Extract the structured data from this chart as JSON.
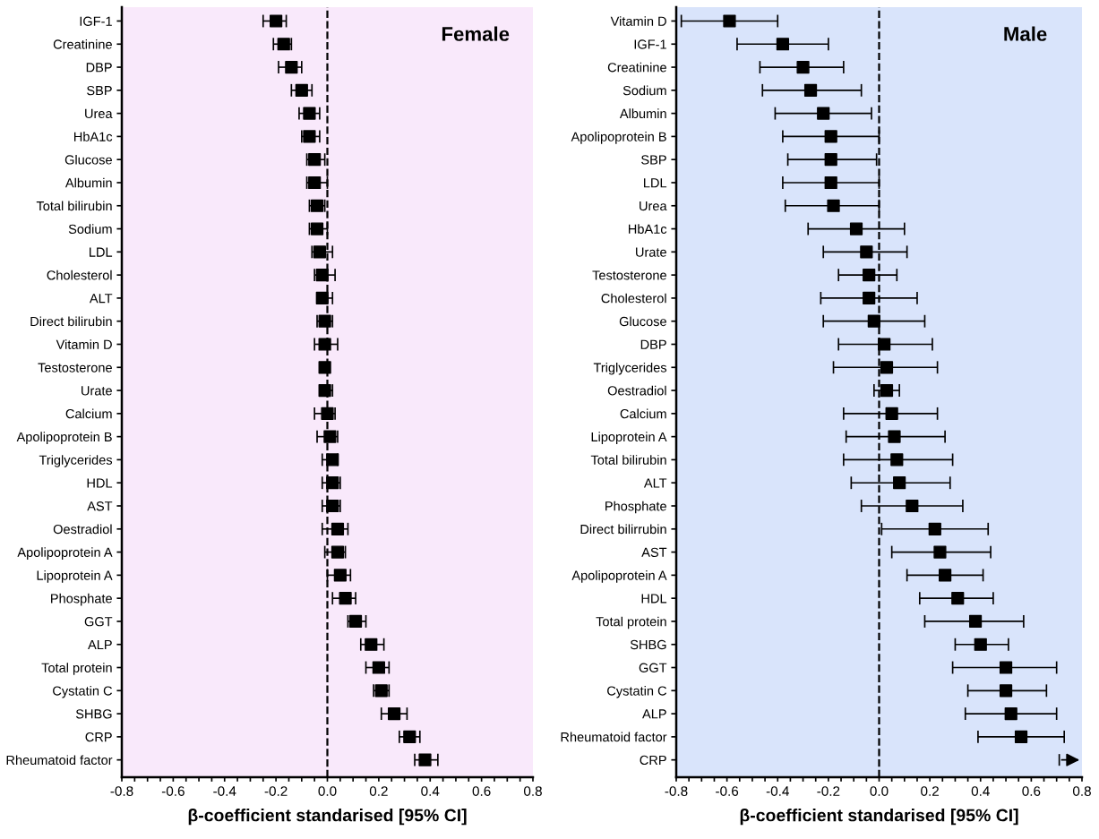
{
  "chart_data": [
    {
      "type": "scatter",
      "orientation": "horizontal",
      "annotations": [
        "Female"
      ],
      "xlabel": "β-coefficient standarised [95% CI]",
      "marker": "square",
      "grid": false,
      "categories": [
        "IGF-1",
        "Creatinine",
        "DBP",
        "SBP",
        "Urea",
        "HbA1c",
        "Glucose",
        "Albumin",
        "Total bilirubin",
        "Sodium",
        "LDL",
        "Cholesterol",
        "ALT",
        "Direct bilirubin",
        "Vitamin D",
        "Testosterone",
        "Urate",
        "Calcium",
        "Apolipoprotein B",
        "Triglycerides",
        "HDL",
        "AST",
        "Oestradiol",
        "Apolipoprotein A",
        "Lipoprotein A",
        "Phosphate",
        "GGT",
        "ALP",
        "Total protein",
        "Cystatin C",
        "SHBG",
        "CRP",
        "Rheumatoid factor"
      ],
      "series": [
        {
          "color": "#000000",
          "values": [
            -0.2,
            -0.17,
            -0.14,
            -0.1,
            -0.07,
            -0.07,
            -0.05,
            -0.05,
            -0.04,
            -0.04,
            -0.03,
            -0.02,
            -0.02,
            -0.01,
            -0.01,
            -0.01,
            -0.01,
            0.0,
            0.01,
            0.02,
            0.02,
            0.02,
            0.04,
            0.04,
            0.05,
            0.07,
            0.11,
            0.17,
            0.2,
            0.21,
            0.26,
            0.32,
            0.38
          ],
          "errors": [
            [
              -0.25,
              -0.16
            ],
            [
              -0.21,
              -0.14
            ],
            [
              -0.19,
              -0.1
            ],
            [
              -0.14,
              -0.06
            ],
            [
              -0.11,
              -0.03
            ],
            [
              -0.1,
              -0.03
            ],
            [
              -0.08,
              -0.01
            ],
            [
              -0.08,
              0.0
            ],
            [
              -0.07,
              -0.01
            ],
            [
              -0.07,
              0.0
            ],
            [
              -0.06,
              0.02
            ],
            [
              -0.05,
              0.03
            ],
            [
              -0.04,
              0.02
            ],
            [
              -0.04,
              0.02
            ],
            [
              -0.05,
              0.04
            ],
            null,
            [
              -0.03,
              0.02
            ],
            [
              -0.05,
              0.03
            ],
            [
              -0.04,
              0.04
            ],
            [
              -0.02,
              0.04
            ],
            [
              -0.02,
              0.05
            ],
            [
              -0.02,
              0.05
            ],
            [
              -0.02,
              0.08
            ],
            [
              -0.01,
              0.07
            ],
            [
              0.0,
              0.09
            ],
            [
              0.02,
              0.11
            ],
            [
              0.08,
              0.15
            ],
            [
              0.13,
              0.22
            ],
            [
              0.15,
              0.24
            ],
            [
              0.18,
              0.24
            ],
            [
              0.21,
              0.31
            ],
            [
              0.28,
              0.36
            ],
            [
              0.34,
              0.43
            ]
          ]
        }
      ],
      "xlim": [
        -0.8,
        0.8
      ],
      "xticks": [
        -0.8,
        {
          "value": -0.75,
          "label": null
        },
        {
          "value": -0.7,
          "label": null
        },
        {
          "value": -0.65,
          "label": null
        },
        -0.6,
        {
          "value": -0.55,
          "label": null
        },
        {
          "value": -0.5,
          "label": null
        },
        {
          "value": -0.45,
          "label": null
        },
        -0.4,
        {
          "value": -0.35,
          "label": null
        },
        {
          "value": -0.3,
          "label": null
        },
        {
          "value": -0.25,
          "label": null
        },
        -0.2,
        {
          "value": -0.15,
          "label": null
        },
        {
          "value": -0.1,
          "label": null
        },
        {
          "value": -0.05,
          "label": null
        },
        {
          "value": 0,
          "label": "0.0"
        },
        {
          "value": 0.05,
          "label": null
        },
        {
          "value": 0.1,
          "label": null
        },
        {
          "value": 0.15,
          "label": null
        },
        0.2,
        {
          "value": 0.25,
          "label": null
        },
        {
          "value": 0.3,
          "label": null
        },
        {
          "value": 0.35,
          "label": null
        },
        0.4,
        {
          "value": 0.45,
          "label": null
        },
        {
          "value": 0.5,
          "label": null
        },
        {
          "value": 0.55,
          "label": null
        },
        0.6,
        {
          "value": 0.65,
          "label": null
        },
        {
          "value": 0.7,
          "label": null
        },
        {
          "value": 0.75,
          "label": null
        },
        0.8
      ],
      "ref_lines": [
        {
          "axis": "x",
          "value": 0,
          "color": "#000000",
          "line_style": "dashed"
        }
      ],
      "bands": [
        {
          "axis": "x",
          "from": -0.8,
          "to": 0.8,
          "color": "#f9e9fb"
        }
      ]
    },
    {
      "type": "scatter",
      "orientation": "horizontal",
      "annotations": [
        "Male"
      ],
      "xlabel": "β-coefficient standarised [95% CI]",
      "marker": "square",
      "grid": false,
      "categories": [
        "Vitamin D",
        "IGF-1",
        "Creatinine",
        "Sodium",
        "Albumin",
        "Apolipoprotein B",
        "SBP",
        "LDL",
        "Urea",
        "HbA1c",
        "Urate",
        "Testosterone",
        "Cholesterol",
        "Glucose",
        "DBP",
        "Triglycerides",
        "Oestradiol",
        "Calcium",
        "Lipoprotein A",
        "Total bilirubin",
        "ALT",
        "Phosphate",
        "Direct bilirrubin",
        "AST",
        "Apolipoprotein A",
        "HDL",
        "Total protein",
        "SHBG",
        "GGT",
        "Cystatin C",
        "ALP",
        "Rheumatoid factor",
        "CRP"
      ],
      "series": [
        {
          "color": "#000000",
          "values": [
            -0.59,
            -0.38,
            -0.3,
            -0.27,
            -0.22,
            -0.19,
            -0.19,
            -0.19,
            -0.18,
            -0.09,
            -0.05,
            -0.04,
            -0.04,
            -0.02,
            0.02,
            0.03,
            0.03,
            0.05,
            0.06,
            0.07,
            0.08,
            0.13,
            0.22,
            0.24,
            0.26,
            0.31,
            0.38,
            0.4,
            0.5,
            0.5,
            0.52,
            0.56,
            null
          ],
          "errors": [
            [
              -0.78,
              -0.4
            ],
            [
              -0.56,
              -0.2
            ],
            [
              -0.47,
              -0.14
            ],
            [
              -0.46,
              -0.07
            ],
            [
              -0.41,
              -0.03
            ],
            [
              -0.38,
              0.0
            ],
            [
              -0.36,
              -0.01
            ],
            [
              -0.38,
              0.0
            ],
            [
              -0.37,
              0.0
            ],
            [
              -0.28,
              0.1
            ],
            [
              -0.22,
              0.11
            ],
            [
              -0.16,
              0.07
            ],
            [
              -0.23,
              0.15
            ],
            [
              -0.22,
              0.18
            ],
            [
              -0.16,
              0.21
            ],
            [
              -0.18,
              0.23
            ],
            [
              -0.02,
              0.08
            ],
            [
              -0.14,
              0.23
            ],
            [
              -0.13,
              0.26
            ],
            [
              -0.14,
              0.29
            ],
            [
              -0.11,
              0.28
            ],
            [
              -0.07,
              0.33
            ],
            [
              0.01,
              0.43
            ],
            [
              0.05,
              0.44
            ],
            [
              0.11,
              0.41
            ],
            [
              0.16,
              0.45
            ],
            [
              0.18,
              0.57
            ],
            [
              0.3,
              0.51
            ],
            [
              0.29,
              0.7
            ],
            [
              0.35,
              0.66
            ],
            [
              0.34,
              0.7
            ],
            [
              0.39,
              0.73
            ],
            null
          ]
        }
      ],
      "xlim": [
        -0.8,
        0.8
      ],
      "xticks": [
        -0.8,
        {
          "value": -0.75,
          "label": null
        },
        {
          "value": -0.7,
          "label": null
        },
        {
          "value": -0.65,
          "label": null
        },
        -0.6,
        {
          "value": -0.55,
          "label": null
        },
        {
          "value": -0.5,
          "label": null
        },
        {
          "value": -0.45,
          "label": null
        },
        -0.4,
        {
          "value": -0.35,
          "label": null
        },
        {
          "value": -0.3,
          "label": null
        },
        {
          "value": -0.25,
          "label": null
        },
        -0.2,
        {
          "value": -0.15,
          "label": null
        },
        {
          "value": -0.1,
          "label": null
        },
        {
          "value": -0.05,
          "label": null
        },
        {
          "value": 0,
          "label": "0.0"
        },
        {
          "value": 0.05,
          "label": null
        },
        {
          "value": 0.1,
          "label": null
        },
        {
          "value": 0.15,
          "label": null
        },
        0.2,
        {
          "value": 0.25,
          "label": null
        },
        {
          "value": 0.3,
          "label": null
        },
        {
          "value": 0.35,
          "label": null
        },
        0.4,
        {
          "value": 0.45,
          "label": null
        },
        {
          "value": 0.5,
          "label": null
        },
        {
          "value": 0.55,
          "label": null
        },
        0.6,
        {
          "value": 0.65,
          "label": null
        },
        {
          "value": 0.7,
          "label": null
        },
        {
          "value": 0.75,
          "label": null
        },
        0.8
      ],
      "ref_lines": [
        {
          "axis": "x",
          "value": 0,
          "color": "#000000",
          "line_style": "dashed"
        }
      ],
      "bands": [
        {
          "axis": "x",
          "from": -0.8,
          "to": 0.8,
          "color": "#d9e4fb"
        }
      ]
    }
  ]
}
